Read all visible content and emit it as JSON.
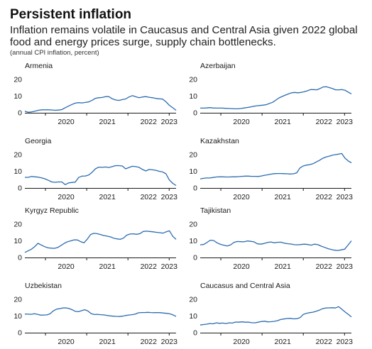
{
  "header": {
    "title": "Persistent inflation",
    "subtitle": "Inflation remains volatile in Caucasus and Central Asia given 2022 global food and energy prices surge, supply chain bottlenecks.",
    "note": "(annual CPI inflation, percent)"
  },
  "colors": {
    "line": "#2b6cb0",
    "axis": "#1a1a1a",
    "text": "#1a1a1a"
  },
  "chart_data": [
    {
      "type": "line",
      "title": "Armenia",
      "x_start": "2019-07",
      "x_end": "2023-03",
      "x_ticks": [
        "2020",
        "2021",
        "2022",
        "2023"
      ],
      "ylim": [
        0,
        20
      ],
      "yticks": [
        0,
        10,
        20
      ],
      "series": [
        {
          "values": [
            1.0,
            0.3,
            0.5,
            1.0,
            1.5,
            1.8,
            1.8,
            1.8,
            1.7,
            1.5,
            1.6,
            1.9,
            3.0,
            4.0,
            5.0,
            5.8,
            6.1,
            5.9,
            6.2,
            6.5,
            7.5,
            8.7,
            9.0,
            9.2,
            9.7,
            9.7,
            8.4,
            7.7,
            7.4,
            7.9,
            8.3,
            9.5,
            10.3,
            9.6,
            9.0,
            9.5,
            9.7,
            9.3,
            9.0,
            8.6,
            8.4,
            8.2,
            6.6,
            4.5,
            3.0,
            1.5
          ]
        }
      ]
    },
    {
      "type": "line",
      "title": "Azerbaijan",
      "x_start": "2019-07",
      "x_end": "2023-03",
      "x_ticks": [
        "2020",
        "2021",
        "2022",
        "2023"
      ],
      "ylim": [
        0,
        20
      ],
      "yticks": [
        0,
        10,
        20
      ],
      "series": [
        {
          "values": [
            2.8,
            2.8,
            2.9,
            3.1,
            2.9,
            2.8,
            2.8,
            2.8,
            2.7,
            2.6,
            2.5,
            2.4,
            2.4,
            2.6,
            2.9,
            3.2,
            3.5,
            3.9,
            4.2,
            4.4,
            4.6,
            4.9,
            5.6,
            6.3,
            7.6,
            8.9,
            9.8,
            10.6,
            11.3,
            12.0,
            12.2,
            12.0,
            12.2,
            12.6,
            13.2,
            13.9,
            13.9,
            13.8,
            14.5,
            15.5,
            15.6,
            15.1,
            14.5,
            13.8,
            13.8,
            13.9,
            13.5,
            12.4,
            11.3
          ]
        }
      ]
    },
    {
      "type": "line",
      "title": "Georgia",
      "x_start": "2019-07",
      "x_end": "2023-03",
      "x_ticks": [
        "2020",
        "2021",
        "2022",
        "2023"
      ],
      "ylim": [
        0,
        20
      ],
      "yticks": [
        0,
        10,
        20
      ],
      "series": [
        {
          "values": [
            6.4,
            6.4,
            6.9,
            6.7,
            6.5,
            6.1,
            5.5,
            4.6,
            3.6,
            3.4,
            3.6,
            3.6,
            2.0,
            3.0,
            3.3,
            3.5,
            6.3,
            7.1,
            7.2,
            7.8,
            9.4,
            11.5,
            12.5,
            12.4,
            12.6,
            12.3,
            12.8,
            13.4,
            13.4,
            13.2,
            11.5,
            12.3,
            13.0,
            12.8,
            12.4,
            11.1,
            10.2,
            11.1,
            10.9,
            10.6,
            10.0,
            9.6,
            8.5,
            4.8,
            2.8,
            1.5
          ]
        }
      ]
    },
    {
      "type": "line",
      "title": "Kazakhstan",
      "x_start": "2019-07",
      "x_end": "2023-03",
      "x_ticks": [
        "2020",
        "2021",
        "2022",
        "2023"
      ],
      "ylim": [
        0,
        20
      ],
      "yticks": [
        0,
        10,
        20
      ],
      "series": [
        {
          "values": [
            5.4,
            5.8,
            6.0,
            6.0,
            6.3,
            6.6,
            6.7,
            6.7,
            6.6,
            6.6,
            6.7,
            6.7,
            6.8,
            7.0,
            7.1,
            7.1,
            7.0,
            7.0,
            6.9,
            7.2,
            7.6,
            7.9,
            8.3,
            8.6,
            8.7,
            8.7,
            8.6,
            8.5,
            8.4,
            8.5,
            9.1,
            12.0,
            13.2,
            13.7,
            14.0,
            14.5,
            15.5,
            16.5,
            17.7,
            18.5,
            19.0,
            19.6,
            20.0,
            20.3,
            20.7,
            17.9,
            16.2,
            15.1
          ]
        }
      ]
    },
    {
      "type": "line",
      "title": "Kyrgyz Republic",
      "x_start": "2019-07",
      "x_end": "2023-03",
      "x_ticks": [
        "2020",
        "2021",
        "2022",
        "2023"
      ],
      "ylim": [
        0,
        20
      ],
      "yticks": [
        0,
        10,
        20
      ],
      "series": [
        {
          "values": [
            3.0,
            4.0,
            5.0,
            6.5,
            8.5,
            7.5,
            6.5,
            5.8,
            5.6,
            5.5,
            6.0,
            7.2,
            8.5,
            9.5,
            10.0,
            10.6,
            10.5,
            9.5,
            8.8,
            11.0,
            13.8,
            14.5,
            14.3,
            13.8,
            13.2,
            12.8,
            12.4,
            11.6,
            11.2,
            10.9,
            11.6,
            13.4,
            14.1,
            14.2,
            13.9,
            14.3,
            15.6,
            15.8,
            15.6,
            15.4,
            15.1,
            14.9,
            14.6,
            15.4,
            16.0,
            12.7,
            10.9
          ]
        }
      ]
    },
    {
      "type": "line",
      "title": "Tajikistan",
      "x_start": "2019-07",
      "x_end": "2023-03",
      "x_ticks": [
        "2020",
        "2021",
        "2022",
        "2023"
      ],
      "ylim": [
        0,
        20
      ],
      "yticks": [
        0,
        10,
        20
      ],
      "series": [
        {
          "values": [
            7.6,
            7.8,
            9.0,
            10.4,
            10.2,
            8.8,
            7.9,
            7.4,
            6.9,
            7.5,
            9.0,
            9.6,
            9.5,
            9.4,
            9.9,
            9.7,
            9.4,
            8.2,
            8.0,
            8.4,
            9.0,
            9.3,
            8.8,
            9.1,
            9.2,
            8.6,
            8.3,
            8.1,
            7.7,
            7.6,
            7.8,
            8.0,
            7.8,
            7.4,
            8.0,
            7.7,
            6.8,
            6.1,
            5.3,
            4.8,
            4.4,
            4.2,
            4.6,
            5.0,
            7.5,
            10.0
          ]
        }
      ]
    },
    {
      "type": "line",
      "title": "Uzbekistan",
      "x_start": "2019-07",
      "x_end": "2023-03",
      "x_ticks": [
        "2020",
        "2021",
        "2022",
        "2023"
      ],
      "ylim": [
        0,
        20
      ],
      "yticks": [
        0,
        10,
        20
      ],
      "series": [
        {
          "values": [
            11.2,
            11.1,
            11.0,
            11.4,
            11.0,
            10.5,
            10.6,
            10.7,
            11.3,
            13.0,
            14.1,
            14.4,
            14.8,
            14.9,
            14.5,
            13.8,
            12.8,
            12.6,
            13.2,
            13.8,
            13.0,
            11.5,
            10.9,
            11.0,
            10.8,
            10.7,
            10.4,
            10.1,
            9.9,
            9.8,
            9.7,
            9.9,
            10.3,
            10.6,
            10.8,
            11.1,
            11.9,
            12.1,
            12.1,
            12.2,
            12.1,
            12.0,
            12.1,
            12.0,
            11.8,
            11.6,
            11.3,
            10.7,
            9.8
          ]
        }
      ]
    },
    {
      "type": "line",
      "title": "Caucasus and Central Asia",
      "x_start": "2019-07",
      "x_end": "2023-03",
      "x_ticks": [
        "2020",
        "2021",
        "2022",
        "2023"
      ],
      "ylim": [
        0,
        20
      ],
      "yticks": [
        0,
        10,
        20
      ],
      "series": [
        {
          "values": [
            4.6,
            4.9,
            5.1,
            5.5,
            5.3,
            5.9,
            5.6,
            5.8,
            5.5,
            5.9,
            5.8,
            6.4,
            6.3,
            6.5,
            6.3,
            6.3,
            6.0,
            5.9,
            6.3,
            6.7,
            6.9,
            6.5,
            6.6,
            6.8,
            7.2,
            7.9,
            8.2,
            8.5,
            8.6,
            8.3,
            8.4,
            9.0,
            10.9,
            11.6,
            12.0,
            12.3,
            12.8,
            13.5,
            14.4,
            14.8,
            14.9,
            15.0,
            14.8,
            15.6,
            14.1,
            12.5,
            11.0,
            9.5
          ]
        }
      ]
    }
  ]
}
